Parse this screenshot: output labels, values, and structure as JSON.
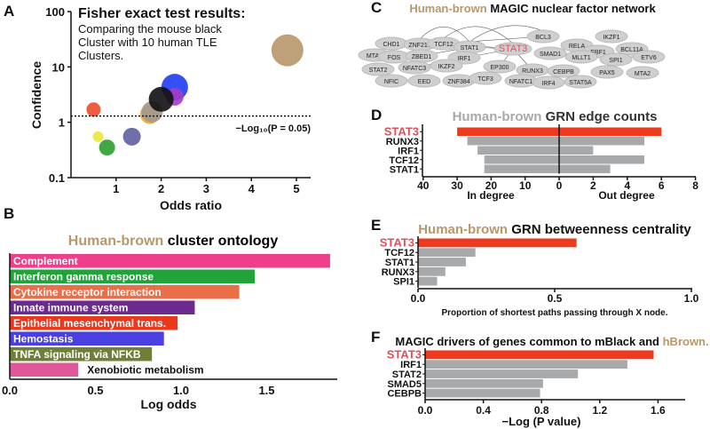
{
  "colors": {
    "brown": "#b8976a",
    "red": "#ee3a1f",
    "gray": "#a7a9ab",
    "stat3": "#e0505a"
  },
  "chart_data": [
    {
      "panel": "A",
      "type": "scatter",
      "title": "Fisher exact test results:",
      "subtitle": [
        "Comparing the mouse black",
        "Cluster with 10 human TLE",
        "Clusters."
      ],
      "xlabel": "Odds ratio",
      "ylabel": "Confidence",
      "yscale": "log",
      "xlim": [
        0,
        5.4
      ],
      "ylim": [
        0.1,
        100
      ],
      "xticks": [
        "1",
        "2",
        "3",
        "4",
        "5"
      ],
      "yticks": [
        "0.1",
        "1",
        "10",
        "100"
      ],
      "threshold": {
        "value": 1.3,
        "label": "−Log₁₀(P = 0.05)"
      },
      "points": [
        {
          "x": 4.8,
          "y": 20,
          "size": 18,
          "color": "#b8976a"
        },
        {
          "x": 2.3,
          "y": 4.3,
          "size": 15,
          "color": "#1f3cf5"
        },
        {
          "x": 2.3,
          "y": 2.9,
          "size": 10,
          "color": "#a23cc8"
        },
        {
          "x": 1.75,
          "y": 1.4,
          "size": 11,
          "color": "#f0a430"
        },
        {
          "x": 1.8,
          "y": 1.55,
          "size": 12,
          "color": "#a09a90"
        },
        {
          "x": 2.0,
          "y": 2.6,
          "size": 14,
          "color": "#111111"
        },
        {
          "x": 0.5,
          "y": 1.7,
          "size": 8,
          "color": "#ee4a2a"
        },
        {
          "x": 1.35,
          "y": 0.55,
          "size": 10,
          "color": "#5f5fa0"
        },
        {
          "x": 0.6,
          "y": 0.55,
          "size": 6,
          "color": "#e8e83a"
        },
        {
          "x": 0.8,
          "y": 0.35,
          "size": 9,
          "color": "#2ea02e"
        }
      ]
    },
    {
      "panel": "B",
      "type": "bar",
      "title_colored": "Human-brown",
      "title": "cluster ontology",
      "xlabel": "Log odds",
      "xlim": [
        0,
        1.9
      ],
      "xticks": [
        "0.0",
        "0.5",
        "1.0",
        "1.5"
      ],
      "categories": [
        "Complement",
        "Interferon gamma response",
        "Cytokine receptor interaction",
        "Innate immune system",
        "Epithelial mesenchymal trans.",
        "Hemostasis",
        "TNFA signaling via NFKB",
        "Xenobiotic metabolism"
      ],
      "values": [
        1.87,
        1.43,
        1.34,
        1.08,
        0.98,
        0.9,
        0.83,
        0.4
      ],
      "bar_colors": [
        "#ee3f8a",
        "#22a33a",
        "#ea6e48",
        "#6a2a8e",
        "#e8391f",
        "#4a3fe0",
        "#6f7f3a",
        "#e0589a"
      ]
    },
    {
      "panel": "D",
      "type": "bar",
      "title_colored": "Human-brown",
      "title": "GRN edge counts",
      "categories": [
        "STAT3",
        "RUNX3",
        "IRF1",
        "TCF12",
        "STAT1"
      ],
      "series": [
        {
          "name": "In degree",
          "values": [
            30,
            27,
            24,
            22,
            22
          ],
          "xlim": [
            0,
            40
          ],
          "xticks": [
            "40",
            "30",
            "20",
            "10",
            "0"
          ]
        },
        {
          "name": "Out degree",
          "values": [
            6,
            5,
            2,
            5,
            3
          ],
          "xlim": [
            0,
            8
          ],
          "xticks": [
            "2",
            "4",
            "6",
            "8"
          ]
        }
      ]
    },
    {
      "panel": "E",
      "type": "bar",
      "title_colored": "Human-brown",
      "title": "GRN betweenness centrality",
      "xlabel": "Proportion of shortest paths passing through X node.",
      "xlim": [
        0,
        1
      ],
      "xticks": [
        "0.0",
        "0.5",
        "1.0"
      ],
      "categories": [
        "STAT3",
        "TCF12",
        "STAT1",
        "RUNX3",
        "SPI1"
      ],
      "values": [
        0.58,
        0.21,
        0.175,
        0.1,
        0.07
      ]
    },
    {
      "panel": "F",
      "type": "bar",
      "title": "MAGIC drivers of genes common to mBlack and",
      "title_colored": "hBrown.",
      "xlabel": "−Log (P value)",
      "xlim": [
        0,
        1.8
      ],
      "xticks": [
        "0.0",
        "0.4",
        "0.8",
        "1.2",
        "1.6"
      ],
      "categories": [
        "STAT3",
        "IRF1",
        "STAT2",
        "SMAD5",
        "CEBPB"
      ],
      "values": [
        1.57,
        1.39,
        1.05,
        0.81,
        0.79
      ]
    }
  ],
  "network": {
    "panel": "C",
    "title_colored": "Human-brown",
    "title": "MAGIC nuclear factor network",
    "highlight": "STAT3",
    "nodes": [
      "CHD1",
      "ZNF217",
      "TCF12",
      "STAT1",
      "STAT3",
      "BCL3",
      "RELA",
      "IKZF1",
      "EBF1",
      "BCL11A",
      "MTA3",
      "FOS",
      "ZBED1",
      "IRF1",
      "SMAD1",
      "MLLT1",
      "SPI1",
      "ETV6",
      "STAT2",
      "NFATC3",
      "IKZF2",
      "EP300",
      "RUNX3",
      "CEBPB",
      "PAX5",
      "MTA2",
      "NFIC",
      "EED",
      "ZNF384",
      "TCF3",
      "NFATC1",
      "IRF4",
      "STAT5A"
    ]
  },
  "panel_letters": [
    "A",
    "B",
    "C",
    "D",
    "E",
    "F"
  ]
}
